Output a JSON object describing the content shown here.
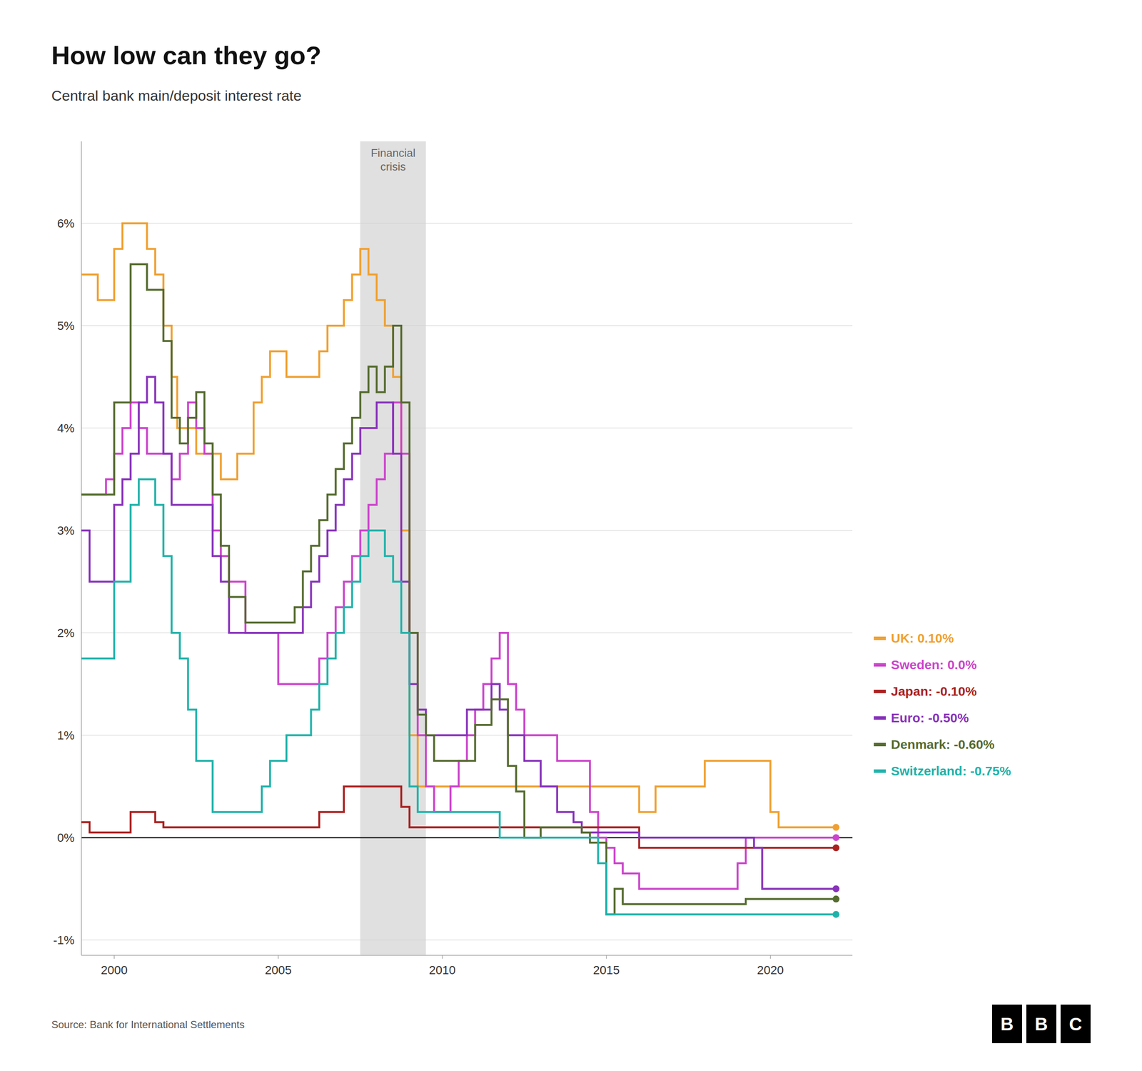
{
  "chart_data": {
    "type": "step",
    "title": "How low can they go?",
    "subtitle": "Central bank main/deposit interest rate",
    "source": "Source: Bank for International Settlements",
    "logo": "BBC",
    "annotations": [
      {
        "text": "Financial\ncrisis",
        "x_start": 2007.5,
        "x_end": 2009.5
      }
    ],
    "xlim": [
      1999.0,
      2022.5
    ],
    "xticks": [
      2000,
      2005,
      2010,
      2015,
      2020
    ],
    "ylim": [
      -1.15,
      6.8
    ],
    "yticks": [
      {
        "value": -1,
        "label": "-1%"
      },
      {
        "value": 0,
        "label": "0%"
      },
      {
        "value": 1,
        "label": "1%"
      },
      {
        "value": 2,
        "label": "2%"
      },
      {
        "value": 3,
        "label": "3%"
      },
      {
        "value": 4,
        "label": "4%"
      },
      {
        "value": 5,
        "label": "5%"
      },
      {
        "value": 6,
        "label": "6%"
      }
    ],
    "grid": true,
    "legend": "right",
    "series": [
      {
        "name": "UK: 0.10%",
        "color": "#F0A030",
        "marker": "end-dot",
        "x": [
          1999.0,
          1999.5,
          2000.0,
          2000.25,
          2001.0,
          2001.25,
          2001.5,
          2001.75,
          2001.92,
          2002.0,
          2002.5,
          2003.0,
          2003.25,
          2003.75,
          2004.25,
          2004.5,
          2004.75,
          2005.25,
          2006.25,
          2006.5,
          2007.0,
          2007.25,
          2007.5,
          2007.75,
          2008.0,
          2008.25,
          2008.5,
          2008.75,
          2009.0,
          2009.25,
          2016.0,
          2016.5,
          2018.0,
          2019.0,
          2020.0,
          2020.25,
          2022.0
        ],
        "values": [
          5.5,
          5.25,
          5.75,
          6.0,
          5.75,
          5.5,
          5.0,
          4.5,
          4.0,
          4.0,
          3.75,
          3.75,
          3.5,
          3.75,
          4.25,
          4.5,
          4.75,
          4.5,
          4.75,
          5.0,
          5.25,
          5.5,
          5.75,
          5.5,
          5.25,
          5.0,
          4.5,
          3.0,
          1.0,
          0.5,
          0.25,
          0.5,
          0.75,
          0.75,
          0.25,
          0.1,
          0.1
        ]
      },
      {
        "name": "Sweden: 0.0%",
        "color": "#CC44CC",
        "marker": "end-dot",
        "x": [
          1999.0,
          1999.75,
          2000.0,
          2000.25,
          2000.5,
          2000.75,
          2001.0,
          2001.75,
          2002.0,
          2002.25,
          2002.5,
          2002.75,
          2003.0,
          2003.25,
          2003.5,
          2004.0,
          2005.0,
          2006.0,
          2006.25,
          2006.5,
          2006.75,
          2007.0,
          2007.25,
          2007.5,
          2007.75,
          2008.0,
          2008.25,
          2008.5,
          2008.75,
          2009.0,
          2009.25,
          2009.5,
          2009.75,
          2010.0,
          2010.25,
          2010.5,
          2010.75,
          2011.0,
          2011.25,
          2011.5,
          2011.75,
          2012.0,
          2012.25,
          2012.5,
          2013.0,
          2013.5,
          2014.0,
          2014.25,
          2014.5,
          2014.75,
          2015.0,
          2015.25,
          2015.5,
          2016.0,
          2019.0,
          2019.25,
          2022.0
        ],
        "values": [
          3.35,
          3.5,
          3.75,
          4.0,
          4.25,
          4.0,
          3.75,
          3.5,
          3.75,
          4.25,
          4.0,
          3.75,
          3.0,
          2.75,
          2.5,
          2.0,
          1.5,
          1.5,
          1.75,
          2.0,
          2.25,
          2.5,
          2.75,
          3.0,
          3.25,
          3.5,
          3.75,
          4.25,
          3.75,
          2.0,
          1.0,
          0.5,
          0.25,
          0.25,
          0.5,
          0.75,
          1.0,
          1.25,
          1.5,
          1.75,
          2.0,
          1.5,
          1.25,
          1.0,
          1.0,
          0.75,
          0.75,
          0.75,
          0.25,
          0.0,
          -0.1,
          -0.25,
          -0.35,
          -0.5,
          -0.25,
          0.0,
          0.0
        ]
      },
      {
        "name": "Japan: -0.10%",
        "color": "#AA2020",
        "marker": "end-dot",
        "x": [
          1999.0,
          1999.25,
          2000.0,
          2000.5,
          2001.0,
          2001.25,
          2001.5,
          2006.0,
          2006.25,
          2007.0,
          2008.0,
          2008.75,
          2009.0,
          2013.0,
          2016.0,
          2022.0
        ],
        "values": [
          0.15,
          0.05,
          0.05,
          0.25,
          0.25,
          0.15,
          0.1,
          0.1,
          0.25,
          0.5,
          0.5,
          0.3,
          0.1,
          0.1,
          -0.1,
          -0.1
        ]
      },
      {
        "name": "Euro: -0.50%",
        "color": "#8833BB",
        "marker": "end-dot",
        "x": [
          1999.0,
          1999.25,
          2000.0,
          2000.25,
          2000.5,
          2000.75,
          2001.0,
          2001.25,
          2001.5,
          2001.75,
          2002.0,
          2003.0,
          2003.25,
          2003.5,
          2004.0,
          2005.0,
          2005.75,
          2006.0,
          2006.25,
          2006.5,
          2006.75,
          2007.0,
          2007.25,
          2007.5,
          2008.0,
          2008.5,
          2008.75,
          2009.0,
          2009.25,
          2009.5,
          2010.75,
          2011.0,
          2011.5,
          2011.75,
          2012.0,
          2012.5,
          2013.0,
          2013.5,
          2014.0,
          2014.25,
          2016.0,
          2019.5,
          2019.75,
          2022.0
        ],
        "values": [
          3.0,
          2.5,
          3.25,
          3.5,
          3.75,
          4.25,
          4.5,
          4.25,
          3.75,
          3.25,
          3.25,
          2.75,
          2.5,
          2.0,
          2.0,
          2.0,
          2.25,
          2.5,
          2.75,
          3.0,
          3.25,
          3.5,
          3.75,
          4.0,
          4.25,
          3.75,
          2.5,
          1.5,
          1.25,
          1.0,
          1.25,
          1.25,
          1.5,
          1.25,
          1.0,
          0.75,
          0.5,
          0.25,
          0.15,
          0.05,
          0.0,
          -0.1,
          -0.5,
          -0.5
        ]
      },
      {
        "name": "Denmark: -0.60%",
        "color": "#556B2F",
        "marker": "end-dot",
        "x": [
          1999.0,
          1999.75,
          2000.0,
          2000.5,
          2001.0,
          2001.5,
          2001.75,
          2002.0,
          2002.25,
          2002.5,
          2002.75,
          2003.0,
          2003.25,
          2003.5,
          2004.0,
          2005.0,
          2005.5,
          2005.75,
          2006.0,
          2006.25,
          2006.5,
          2006.75,
          2007.0,
          2007.25,
          2007.5,
          2007.75,
          2008.0,
          2008.25,
          2008.5,
          2008.75,
          2009.0,
          2009.25,
          2009.5,
          2009.75,
          2010.0,
          2011.0,
          2011.5,
          2012.0,
          2012.25,
          2012.5,
          2013.0,
          2014.0,
          2014.25,
          2014.5,
          2015.0,
          2015.25,
          2015.5,
          2016.0,
          2019.25,
          2022.0
        ],
        "values": [
          3.35,
          3.35,
          4.25,
          5.6,
          5.35,
          4.85,
          4.1,
          3.85,
          4.1,
          4.35,
          3.85,
          3.35,
          2.85,
          2.35,
          2.1,
          2.1,
          2.25,
          2.6,
          2.85,
          3.1,
          3.35,
          3.6,
          3.85,
          4.1,
          4.35,
          4.6,
          4.35,
          4.6,
          5.0,
          4.25,
          2.0,
          1.2,
          1.0,
          0.75,
          0.75,
          1.1,
          1.35,
          0.7,
          0.45,
          0.0,
          0.1,
          0.1,
          0.05,
          -0.05,
          -0.75,
          -0.5,
          -0.65,
          -0.65,
          -0.6,
          -0.6
        ]
      },
      {
        "name": "Switzerland: -0.75%",
        "color": "#20B2AA",
        "marker": "end-dot",
        "x": [
          1999.0,
          2000.0,
          2000.5,
          2000.75,
          2001.0,
          2001.25,
          2001.5,
          2001.75,
          2002.0,
          2002.25,
          2002.5,
          2003.0,
          2004.5,
          2004.75,
          2005.25,
          2006.0,
          2006.25,
          2006.5,
          2006.75,
          2007.0,
          2007.25,
          2007.5,
          2007.75,
          2008.0,
          2008.25,
          2008.5,
          2008.75,
          2009.0,
          2009.25,
          2011.75,
          2014.75,
          2015.0,
          2022.0
        ],
        "values": [
          1.75,
          2.5,
          3.25,
          3.5,
          3.5,
          3.25,
          2.75,
          2.0,
          1.75,
          1.25,
          0.75,
          0.25,
          0.5,
          0.75,
          1.0,
          1.25,
          1.5,
          1.75,
          2.0,
          2.25,
          2.5,
          2.75,
          3.0,
          3.0,
          2.75,
          2.5,
          2.0,
          0.5,
          0.25,
          0.0,
          -0.25,
          -0.75,
          -0.75
        ]
      }
    ]
  }
}
